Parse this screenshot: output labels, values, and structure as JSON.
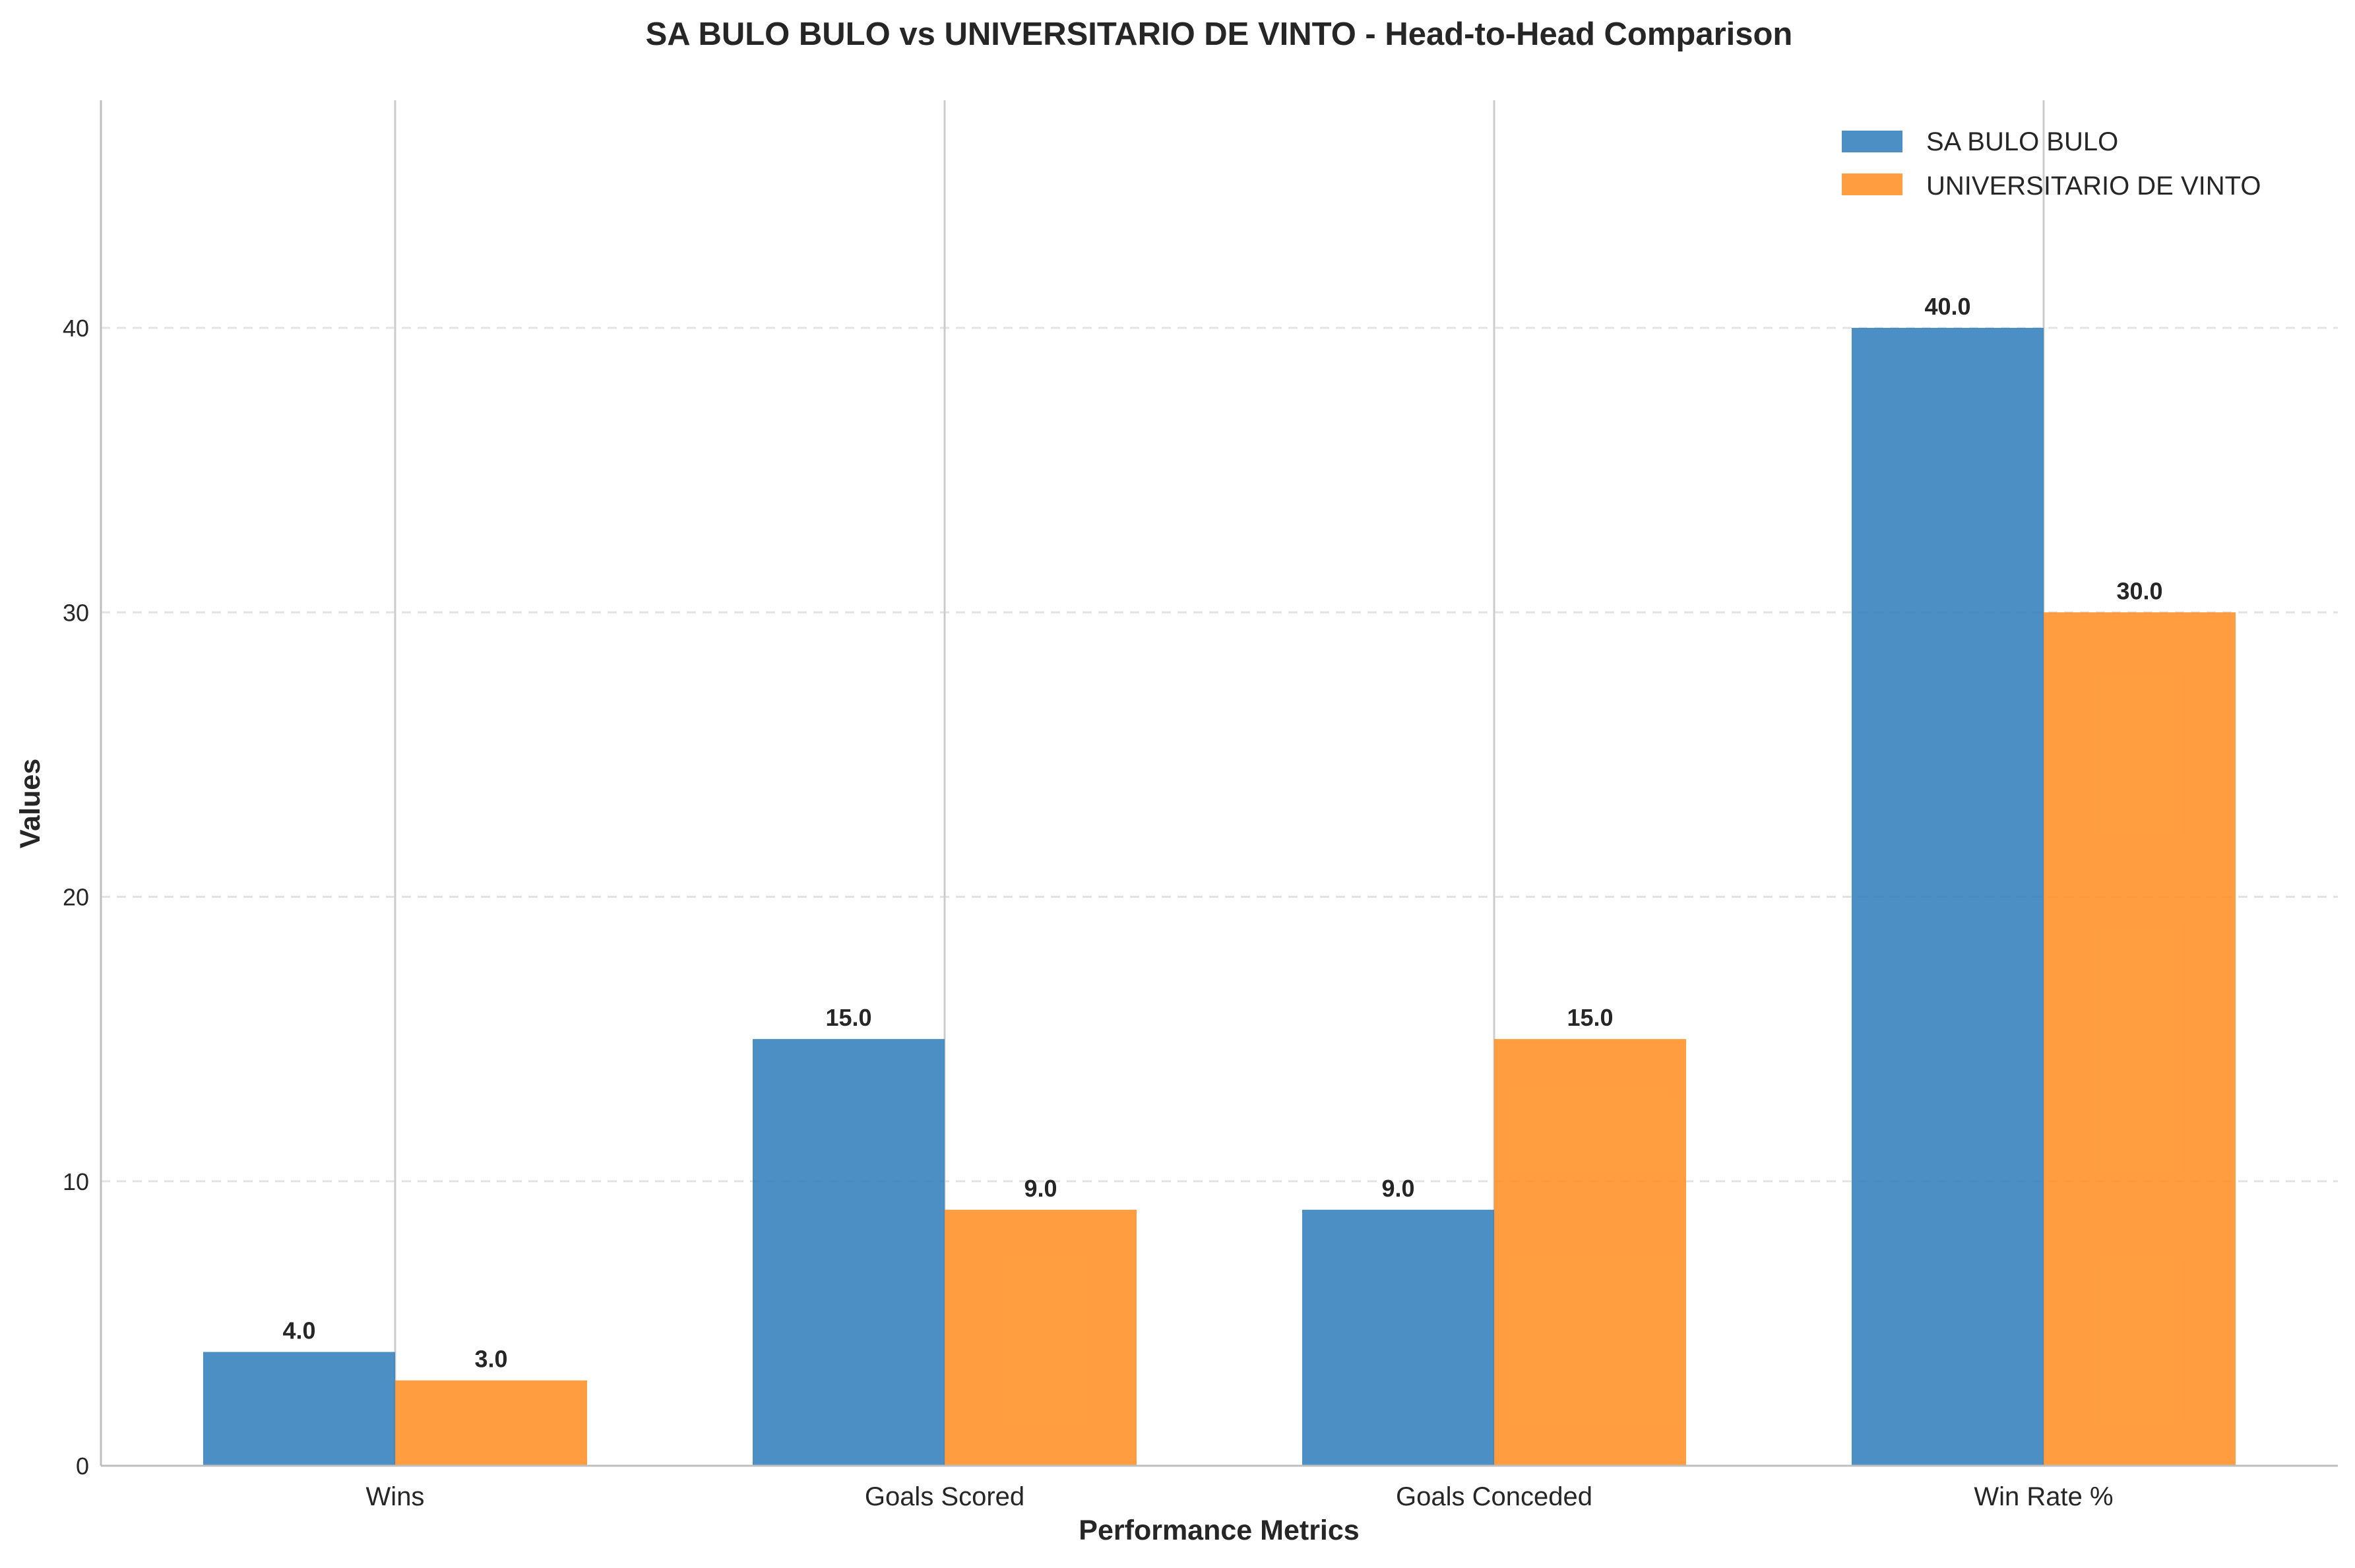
{
  "chart_data": {
    "type": "bar",
    "title": "SA BULO BULO vs UNIVERSITARIO DE VINTO - Head-to-Head Comparison",
    "xlabel": "Performance Metrics",
    "ylabel": "Values",
    "categories": [
      "Wins",
      "Goals Scored",
      "Goals Conceded",
      "Win Rate %"
    ],
    "series": [
      {
        "name": "SA BULO BULO",
        "values": [
          4.0,
          15.0,
          9.0,
          40.0
        ],
        "labels": [
          "4.0",
          "15.0",
          "9.0",
          "40.0"
        ],
        "color": "#2b7bba"
      },
      {
        "name": "UNIVERSITARIO DE VINTO",
        "values": [
          3.0,
          9.0,
          15.0,
          30.0
        ],
        "labels": [
          "3.0",
          "9.0",
          "15.0",
          "30.0"
        ],
        "color": "#ff8c1f"
      }
    ],
    "ylim": [
      0,
      48
    ],
    "yticks": [
      0,
      10,
      20,
      30,
      40
    ],
    "ytick_labels": [
      "0",
      "10",
      "20",
      "30",
      "40"
    ],
    "horizontal_grid": "dashed",
    "vertical_grid": true,
    "legend": "top-right"
  }
}
